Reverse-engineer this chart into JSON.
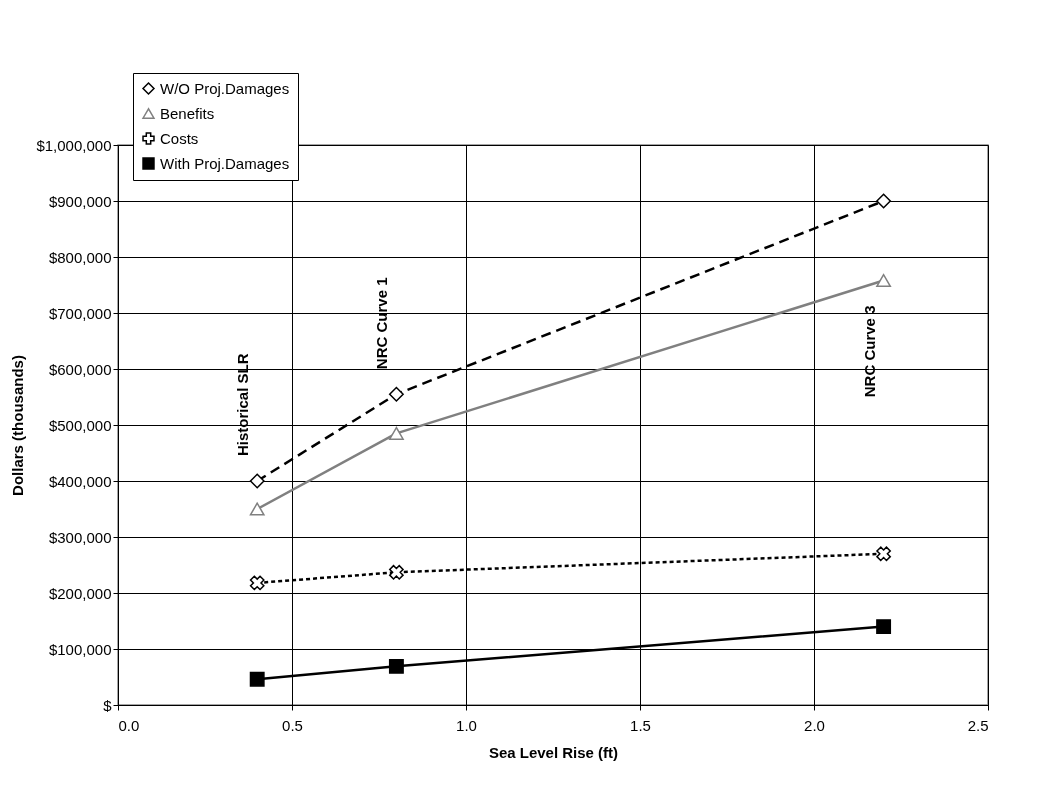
{
  "chart_data": {
    "type": "line",
    "xlabel": "Sea Level Rise (ft)",
    "ylabel": "Dollars (thousands)",
    "x": [
      0.4,
      0.8,
      2.2
    ],
    "series": [
      {
        "name": "W/O Proj.Damages",
        "color": "#000000",
        "marker": "diamond",
        "line_style": "dashed",
        "values": [
          400000,
          555000,
          900000
        ]
      },
      {
        "name": "Benefits",
        "color": "#808080",
        "marker": "triangle",
        "line_style": "solid",
        "values": [
          350000,
          485000,
          758000
        ]
      },
      {
        "name": "Costs",
        "color": "#000000",
        "marker": "cross",
        "line_style": "dotted",
        "values": [
          218000,
          237000,
          270000
        ]
      },
      {
        "name": "With Proj.Damages",
        "color": "#000000",
        "marker": "square",
        "line_style": "solid",
        "values": [
          46000,
          69000,
          140000
        ]
      }
    ],
    "xlim": [
      0,
      2.5
    ],
    "xticks": [
      {
        "value": 0,
        "label": "0.0"
      },
      {
        "value": 0.5,
        "label": "0.5"
      },
      {
        "value": 1,
        "label": "1.0"
      },
      {
        "value": 1.5,
        "label": "1.5"
      },
      {
        "value": 2,
        "label": "2.0"
      },
      {
        "value": 2.5,
        "label": "2.5"
      }
    ],
    "ylim": [
      0,
      1000000
    ],
    "yticks": [
      {
        "value": 0,
        "label": "$"
      },
      {
        "value": 100000,
        "label": "$100,000"
      },
      {
        "value": 200000,
        "label": "$200,000"
      },
      {
        "value": 300000,
        "label": "$300,000"
      },
      {
        "value": 400000,
        "label": "$400,000"
      },
      {
        "value": 500000,
        "label": "$500,000"
      },
      {
        "value": 600000,
        "label": "$600,000"
      },
      {
        "value": 700000,
        "label": "$700,000"
      },
      {
        "value": 800000,
        "label": "$800,000"
      },
      {
        "value": 900000,
        "label": "$900,000"
      },
      {
        "value": 1000000,
        "label": "$1,000,000"
      }
    ],
    "annotations": [
      "Historical SLR",
      "NRC Curve 1",
      "NRC Curve 3"
    ],
    "grid": true,
    "legend": "top left"
  }
}
